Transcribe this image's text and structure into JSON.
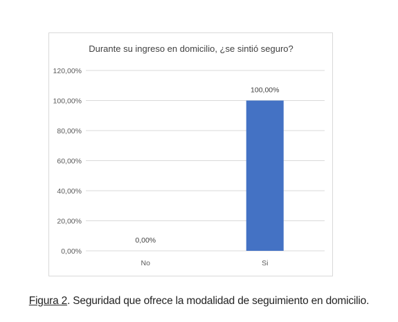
{
  "chart_data": {
    "type": "bar",
    "title": "Durante su ingreso en domicilio, ¿se sintió seguro?",
    "categories": [
      "No",
      "Si"
    ],
    "values": [
      0,
      100
    ],
    "data_labels": [
      "0,00%",
      "100,00%"
    ],
    "ylim": [
      0,
      120
    ],
    "yticks": [
      0,
      20,
      40,
      60,
      80,
      100,
      120
    ],
    "ytick_labels": [
      "0,00%",
      "20,00%",
      "40,00%",
      "60,00%",
      "80,00%",
      "100,00%",
      "120,00%"
    ],
    "xlabel": "",
    "ylabel": "",
    "grid": true,
    "legend": "none",
    "bar_color": "#4472c4"
  },
  "caption": {
    "label": "Figura 2",
    "text": ". Seguridad que ofrece la modalidad de seguimiento en domicilio."
  }
}
